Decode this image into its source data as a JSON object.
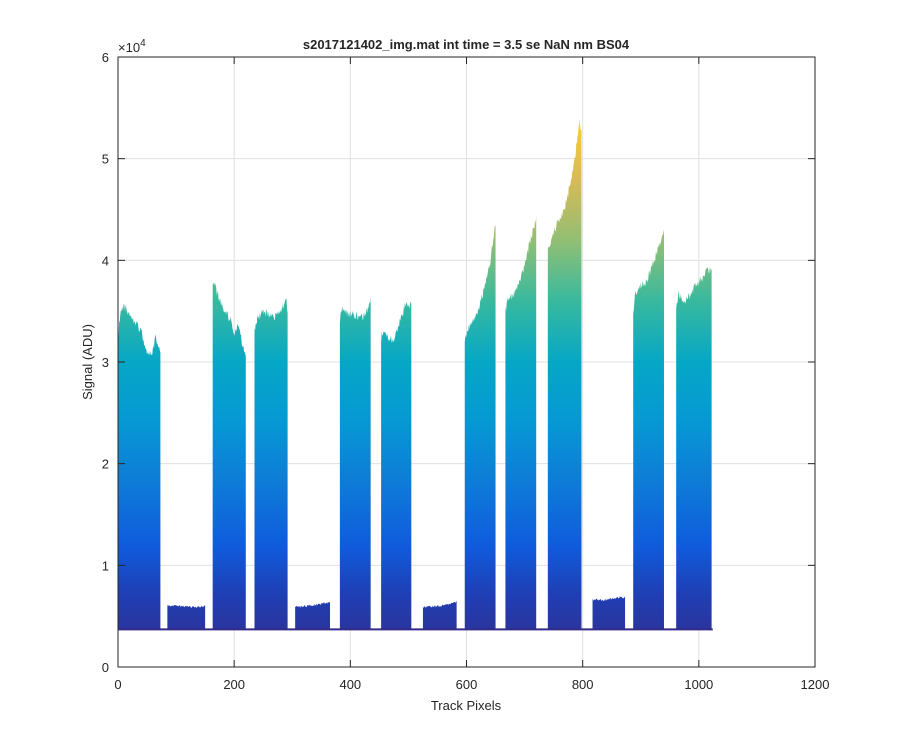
{
  "chart_data": {
    "type": "area",
    "title": "s2017121402_img.mat int time = 3.5 se  NaN nm BS04",
    "xlabel": "Track Pixels",
    "ylabel": "Signal (ADU)",
    "xlim": [
      0,
      1200
    ],
    "ylim": [
      0,
      60000
    ],
    "x_ticks": [
      0,
      200,
      400,
      600,
      800,
      1000,
      1200
    ],
    "x_tick_labels": [
      "0",
      "200",
      "400",
      "600",
      "800",
      "1000",
      "1200"
    ],
    "y_ticks": [
      0,
      10000,
      20000,
      30000,
      40000,
      50000,
      60000
    ],
    "y_tick_labels": [
      "0",
      "1",
      "2",
      "3",
      "4",
      "5",
      "6"
    ],
    "y_exponent_label": "×10",
    "y_exponent_power": "4",
    "grid": true,
    "colormap": "parula",
    "colors": {
      "low": "#352a87",
      "mid": "#06a7c6",
      "high": "#f9fb0e",
      "axes": "#262626",
      "grid": "#e0e0e0"
    },
    "baseline": 3700,
    "x_extent": [
      0,
      1024
    ],
    "series": [
      {
        "x": [
          0,
          5,
          10,
          20,
          30,
          40,
          50,
          60,
          65,
          70,
          73
        ],
        "y": [
          33000,
          35500,
          35800,
          35200,
          34500,
          33500,
          31000,
          31500,
          32800,
          32000,
          31800
        ]
      },
      {
        "x": [
          85,
          110,
          135,
          150
        ],
        "y": [
          6200,
          6100,
          6000,
          6200
        ]
      },
      {
        "x": [
          163,
          167,
          175,
          185,
          195,
          200,
          207,
          215,
          220
        ],
        "y": [
          37800,
          38000,
          36500,
          35500,
          34500,
          33000,
          34000,
          32000,
          31000
        ]
      },
      {
        "x": [
          235,
          240,
          250,
          260,
          270,
          280,
          290,
          292
        ],
        "y": [
          33500,
          34800,
          35500,
          35000,
          34800,
          35500,
          36500,
          35000
        ]
      },
      {
        "x": [
          305,
          320,
          345,
          365
        ],
        "y": [
          6000,
          6100,
          6300,
          6500
        ]
      },
      {
        "x": [
          382,
          385,
          395,
          410,
          420,
          430,
          435
        ],
        "y": [
          34500,
          35800,
          35200,
          35000,
          34800,
          35500,
          36500
        ]
      },
      {
        "x": [
          453,
          455,
          465,
          475,
          485,
          495,
          505
        ],
        "y": [
          32500,
          33500,
          33000,
          32500,
          34500,
          36000,
          36000
        ]
      },
      {
        "x": [
          525,
          545,
          565,
          583
        ],
        "y": [
          6000,
          6100,
          6200,
          6500
        ]
      },
      {
        "x": [
          597,
          600,
          610,
          620,
          630,
          640,
          650
        ],
        "y": [
          32500,
          33500,
          34500,
          35500,
          37500,
          40000,
          44000
        ]
      },
      {
        "x": [
          667,
          670,
          680,
          690,
          700,
          710,
          720
        ],
        "y": [
          35500,
          36500,
          37000,
          38000,
          40000,
          42500,
          44500
        ]
      },
      {
        "x": [
          740,
          745,
          755,
          765,
          775,
          785,
          795,
          798
        ],
        "y": [
          41500,
          42500,
          44000,
          45000,
          47000,
          50000,
          54000,
          53000
        ]
      },
      {
        "x": [
          817,
          835,
          855,
          873
        ],
        "y": [
          6800,
          6700,
          6900,
          7000
        ]
      },
      {
        "x": [
          887,
          890,
          900,
          910,
          920,
          930,
          940
        ],
        "y": [
          35500,
          37000,
          38000,
          38500,
          40000,
          41500,
          43500
        ]
      },
      {
        "x": [
          961,
          965,
          975,
          985,
          995,
          1005,
          1015,
          1022
        ],
        "y": [
          35500,
          37000,
          36500,
          37000,
          38000,
          38500,
          39500,
          39500
        ]
      }
    ]
  }
}
